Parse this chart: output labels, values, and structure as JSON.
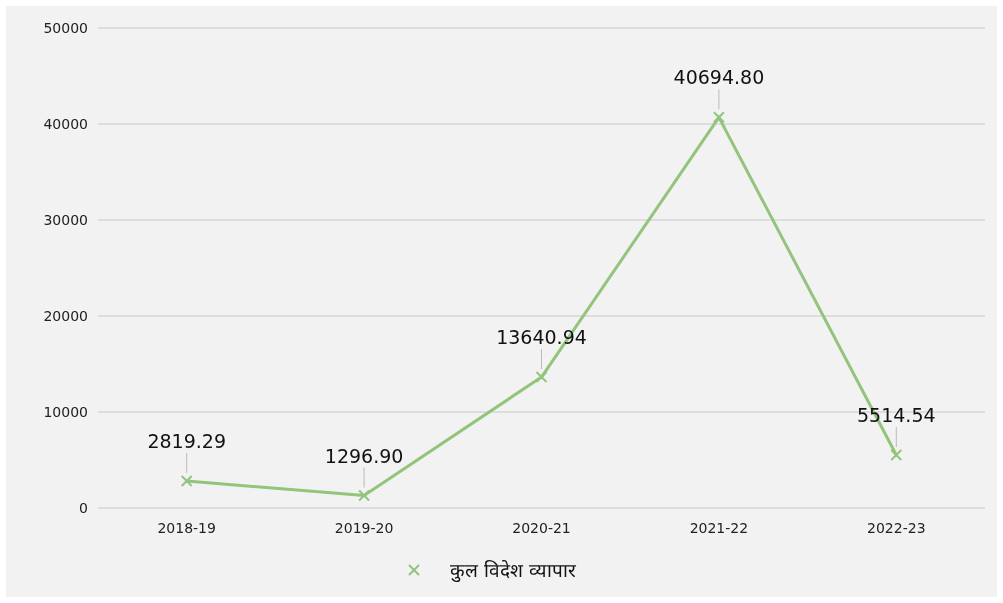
{
  "chart_data": {
    "type": "line",
    "categories": [
      "2018-19",
      "2019-20",
      "2020-21",
      "2021-22",
      "2022-23"
    ],
    "series": [
      {
        "name": "कुल विदेश व्यापार",
        "color": "#93c47d",
        "values": [
          2819.29,
          1296.9,
          13640.94,
          40694.8,
          5514.54
        ],
        "value_labels": [
          "2819.29",
          "1296.90",
          "13640.94",
          "40694.80",
          "5514.54"
        ]
      }
    ],
    "ylim": [
      0,
      50000
    ],
    "yticks": [
      0,
      10000,
      20000,
      30000,
      40000,
      50000
    ],
    "grid": "y",
    "legend": "bottom",
    "marker": "cross",
    "line_style": "solid"
  }
}
